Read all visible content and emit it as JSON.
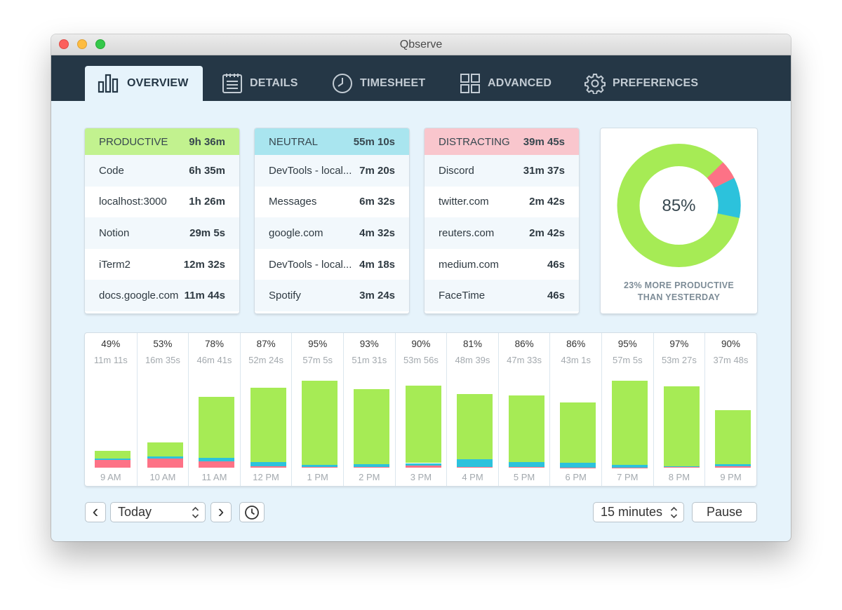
{
  "window": {
    "title": "Qbserve"
  },
  "tabs": [
    {
      "label": "OVERVIEW",
      "icon": "bar-chart-icon",
      "active": true
    },
    {
      "label": "DETAILS",
      "icon": "list-icon",
      "active": false
    },
    {
      "label": "TIMESHEET",
      "icon": "clock-icon",
      "active": false
    },
    {
      "label": "ADVANCED",
      "icon": "grid-icon",
      "active": false
    },
    {
      "label": "PREFERENCES",
      "icon": "gear-icon",
      "active": false
    }
  ],
  "categories": {
    "productive": {
      "label": "PRODUCTIVE",
      "total": "9h 36m",
      "color": "#c2f28f",
      "items": [
        {
          "name": "Code",
          "time": "6h 35m"
        },
        {
          "name": "localhost:3000",
          "time": "1h 26m"
        },
        {
          "name": "Notion",
          "time": "29m 5s"
        },
        {
          "name": "iTerm2",
          "time": "12m 32s"
        },
        {
          "name": "docs.google.com",
          "time": "11m 44s"
        }
      ]
    },
    "neutral": {
      "label": "NEUTRAL",
      "total": "55m 10s",
      "color": "#a9e5ef",
      "items": [
        {
          "name": "DevTools - local...",
          "time": "7m 20s"
        },
        {
          "name": "Messages",
          "time": "6m 32s"
        },
        {
          "name": "google.com",
          "time": "4m 32s"
        },
        {
          "name": "DevTools - local...",
          "time": "4m 18s"
        },
        {
          "name": "Spotify",
          "time": "3m 24s"
        }
      ]
    },
    "distracting": {
      "label": "DISTRACTING",
      "total": "39m 45s",
      "color": "#f9c6cd",
      "items": [
        {
          "name": "Discord",
          "time": "31m 37s"
        },
        {
          "name": "twitter.com",
          "time": "2m 42s"
        },
        {
          "name": "reuters.com",
          "time": "2m 42s"
        },
        {
          "name": "medium.com",
          "time": "46s"
        },
        {
          "name": "FaceTime",
          "time": "46s"
        }
      ]
    }
  },
  "summary": {
    "productivity_pct": "85%",
    "caption_line1": "23% MORE PRODUCTIVE",
    "caption_line2": "THAN YESTERDAY"
  },
  "colors": {
    "productive": "#a6eb55",
    "neutral": "#2cc2dc",
    "distracting": "#fd7286"
  },
  "chart_data": {
    "type": "bar",
    "stacked": true,
    "title": "",
    "categories": [
      "9 AM",
      "10 AM",
      "11 AM",
      "12 PM",
      "1 PM",
      "2 PM",
      "3 PM",
      "4 PM",
      "5 PM",
      "6 PM",
      "7 PM",
      "8 PM",
      "9 PM"
    ],
    "percent_labels": [
      "49%",
      "53%",
      "78%",
      "87%",
      "95%",
      "93%",
      "90%",
      "81%",
      "86%",
      "86%",
      "95%",
      "97%",
      "90%"
    ],
    "duration_labels": [
      "11m 11s",
      "16m 35s",
      "46m 41s",
      "52m 24s",
      "57m 5s",
      "51m 31s",
      "53m 56s",
      "48m 39s",
      "47m 33s",
      "43m 1s",
      "57m 5s",
      "53m 27s",
      "37m 48s"
    ],
    "ylim": [
      0,
      60
    ],
    "series": [
      {
        "name": "Distracting",
        "values": [
          4.9,
          6.0,
          4.3,
          1.0,
          0.5,
          0.3,
          1.2,
          0.4,
          0.6,
          0.2,
          0.2,
          0.3,
          0.8
        ]
      },
      {
        "name": "Neutral",
        "values": [
          0.9,
          1.4,
          2.1,
          2.6,
          1.2,
          1.9,
          1.8,
          5.1,
          3.2,
          3.2,
          1.6,
          0.6,
          1.6
        ]
      },
      {
        "name": "Productive",
        "values": [
          5.4,
          9.2,
          40.3,
          48.8,
          55.4,
          49.3,
          50.9,
          43.1,
          43.7,
          39.6,
          55.3,
          52.5,
          35.4
        ]
      }
    ]
  },
  "controls": {
    "prev_label": "‹",
    "next_label": "›",
    "date_value": "Today",
    "interval_value": "15 minutes",
    "pause_label": "Pause"
  }
}
